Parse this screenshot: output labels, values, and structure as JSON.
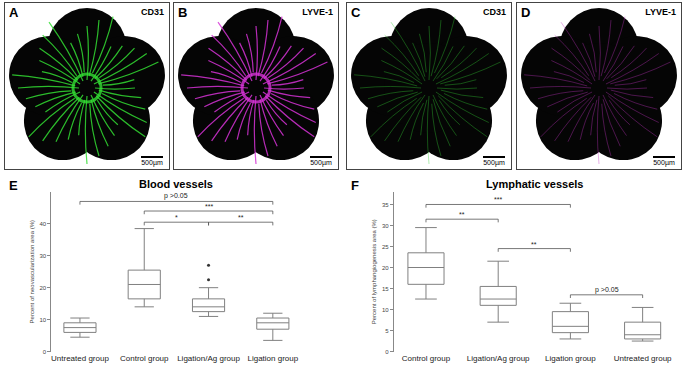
{
  "panels": [
    {
      "label": "A",
      "stain": "CD31",
      "scale_bar": "500µm",
      "color": "#33dd33"
    },
    {
      "label": "B",
      "stain": "LYVE-1",
      "scale_bar": "500µm",
      "color": "#d633d6"
    },
    {
      "label": "C",
      "stain": "CD31",
      "scale_bar": "500µm",
      "color": "#33cc33"
    },
    {
      "label": "D",
      "stain": "LYVE-1",
      "scale_bar": "500µm",
      "color": "#c033c0"
    }
  ],
  "chart_data": [
    {
      "type": "box",
      "panel": "E",
      "title": "Blood vessels",
      "y_label": "Percent of neovascularization area (%)",
      "categories": [
        "Untreated group",
        "Control group",
        "Ligation/Ag group",
        "Ligation group"
      ],
      "lower": [
        4.5,
        14,
        11,
        3.5
      ],
      "q1": [
        6,
        16.5,
        12.5,
        7
      ],
      "median": [
        7.5,
        21,
        14,
        9
      ],
      "q3": [
        9,
        25.5,
        16.5,
        10.5
      ],
      "upper": [
        10.5,
        38.5,
        20,
        12
      ],
      "outliers": [
        [],
        [],
        [
          22.5,
          27
        ],
        []
      ],
      "color": "#808080",
      "ylim": [
        0,
        50
      ],
      "yticks": [
        0,
        10,
        20,
        30,
        40
      ],
      "grid": false,
      "comparisons": [
        {
          "from": "Untreated group",
          "to": "Ligation group",
          "label": "p >0.05",
          "y": 47
        },
        {
          "from": "Control group",
          "to": "Ligation group",
          "label": "***",
          "y": 44
        },
        {
          "from": "Control group",
          "to": "Ligation/Ag group",
          "label": "*",
          "y": 40.5
        },
        {
          "from": "Ligation/Ag group",
          "to": "Ligation group",
          "label": "**",
          "y": 40.5
        }
      ]
    },
    {
      "type": "box",
      "panel": "F",
      "title": "Lymphatic vessels",
      "y_label": "Percent of lymphangiogenesis area (%)",
      "categories": [
        "Control group",
        "Ligation/Ag group",
        "Ligation group",
        "Untreated group"
      ],
      "lower": [
        12.5,
        7,
        3,
        2.5
      ],
      "q1": [
        16,
        11,
        4.5,
        3
      ],
      "median": [
        20,
        12.5,
        6,
        4
      ],
      "q3": [
        23.5,
        15.5,
        9.5,
        7
      ],
      "upper": [
        29.5,
        21.5,
        11.5,
        10.5
      ],
      "outliers": [
        [],
        [],
        [],
        []
      ],
      "color": "#808080",
      "ylim": [
        0,
        38
      ],
      "yticks": [
        0,
        5,
        10,
        15,
        20,
        25,
        30,
        35
      ],
      "grid": false,
      "comparisons": [
        {
          "from": "Control group",
          "to": "Ligation group",
          "label": "***",
          "y": 35
        },
        {
          "from": "Control group",
          "to": "Ligation/Ag group",
          "label": "**",
          "y": 31.5
        },
        {
          "from": "Ligation/Ag group",
          "to": "Ligation group",
          "label": "**",
          "y": 24.5
        },
        {
          "from": "Ligation group",
          "to": "Untreated group",
          "label": "p >0.05",
          "y": 13.5
        }
      ]
    }
  ]
}
